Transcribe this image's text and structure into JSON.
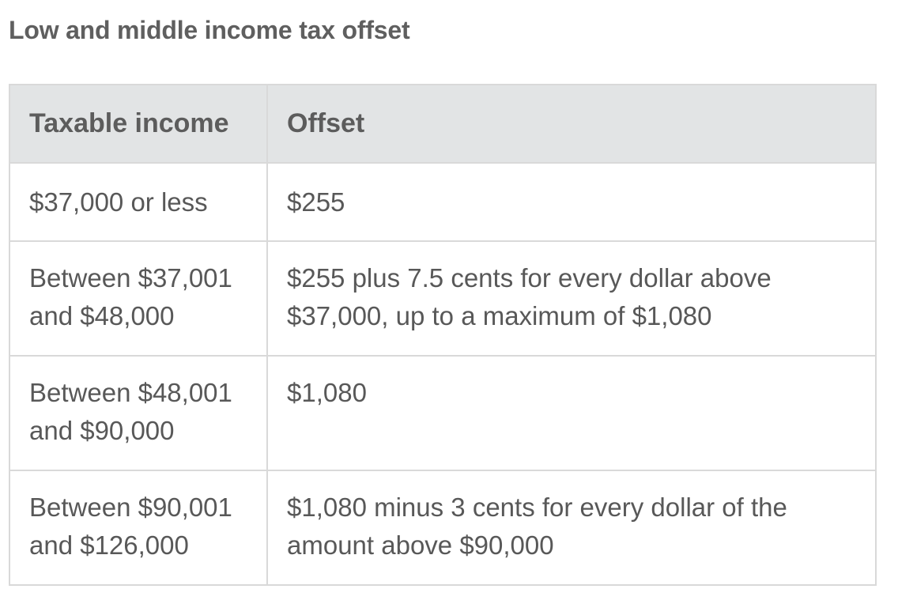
{
  "heading": "Low and middle income tax offset",
  "table": {
    "headers": [
      "Taxable income",
      "Offset"
    ],
    "rows": [
      {
        "income": "$37,000 or less",
        "offset": "$255"
      },
      {
        "income": "Between $37,001 and $48,000",
        "offset": "$255 plus 7.5 cents for every dollar above $37,000, up to a maximum of $1,080"
      },
      {
        "income": "Between $48,001 and $90,000",
        "offset": "$1,080"
      },
      {
        "income": "Between $90,001 and $126,000",
        "offset": "$1,080 minus 3  cents for every dollar of the amount above $90,000"
      }
    ]
  }
}
